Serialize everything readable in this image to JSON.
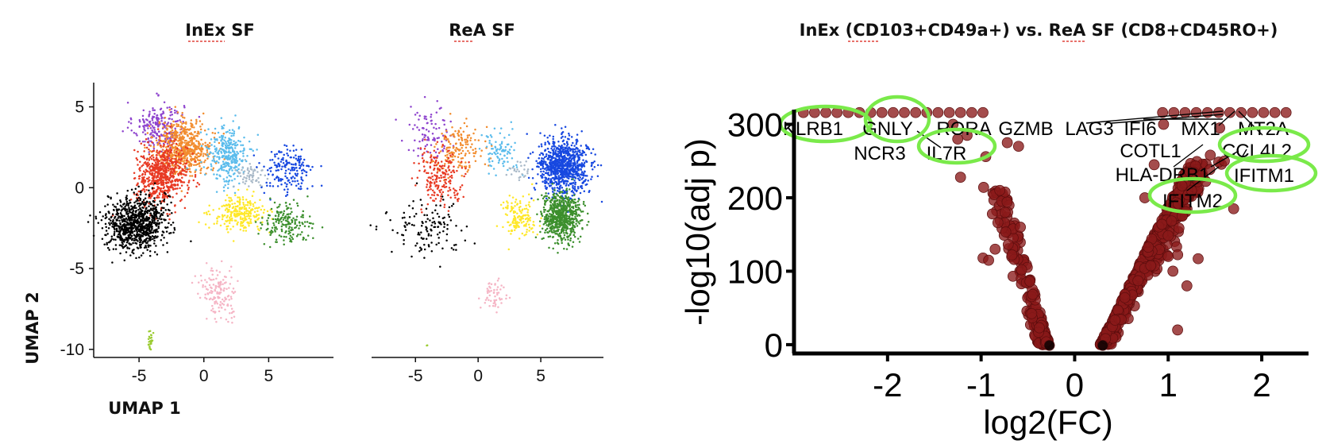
{
  "chart_data": [
    {
      "type": "scatter",
      "title": "InEx SF",
      "xlabel": "UMAP 1",
      "ylabel": "UMAP 2",
      "xlim": [
        -8.5,
        10
      ],
      "ylim": [
        -10.5,
        6.5
      ],
      "xticks": [
        -5,
        0,
        5
      ],
      "yticks": [
        5,
        0,
        -5,
        -10
      ],
      "clusters": [
        {
          "color": "#8e44ce",
          "center": [
            -3.5,
            3.8
          ],
          "spread": [
            1.3,
            1.0
          ],
          "n": 230
        },
        {
          "color": "#f28c2e",
          "center": [
            -1.5,
            2.5
          ],
          "spread": [
            1.4,
            1.1
          ],
          "n": 600
        },
        {
          "color": "#e83a24",
          "center": [
            -3.2,
            0.8
          ],
          "spread": [
            1.3,
            1.2
          ],
          "n": 650
        },
        {
          "color": "#5bbcec",
          "center": [
            1.8,
            2.0
          ],
          "spread": [
            1.0,
            1.2
          ],
          "n": 300
        },
        {
          "color": "#a9b9c8",
          "center": [
            3.5,
            0.8
          ],
          "spread": [
            0.8,
            0.6
          ],
          "n": 60
        },
        {
          "color": "#1748e0",
          "center": [
            6.5,
            1.0
          ],
          "spread": [
            1.3,
            1.0
          ],
          "n": 180
        },
        {
          "color": "#ffe82a",
          "center": [
            2.8,
            -1.6
          ],
          "spread": [
            1.4,
            0.7
          ],
          "n": 260
        },
        {
          "color": "#3c8f2d",
          "center": [
            6.3,
            -2.2
          ],
          "spread": [
            1.2,
            0.8
          ],
          "n": 180
        },
        {
          "color": "#000000",
          "center": [
            -5.2,
            -2.2
          ],
          "spread": [
            1.5,
            1.1
          ],
          "n": 900
        },
        {
          "color": "#f5b5c5",
          "center": [
            1.2,
            -6.5
          ],
          "spread": [
            1.0,
            1.0
          ],
          "n": 150
        },
        {
          "color": "#9ccc33",
          "center": [
            -4.1,
            -9.4
          ],
          "spread": [
            0.12,
            0.45
          ],
          "n": 25
        }
      ]
    },
    {
      "type": "scatter",
      "title": "ReA SF",
      "xlim": [
        -8.5,
        10
      ],
      "ylim": [
        -10.5,
        6.5
      ],
      "xticks": [
        -5,
        0,
        5
      ],
      "clusters": [
        {
          "color": "#8e44ce",
          "center": [
            -4.0,
            3.5
          ],
          "spread": [
            1.2,
            1.1
          ],
          "n": 90
        },
        {
          "color": "#f28c2e",
          "center": [
            -1.5,
            2.5
          ],
          "spread": [
            1.3,
            1.0
          ],
          "n": 160
        },
        {
          "color": "#e83a24",
          "center": [
            -3.0,
            0.7
          ],
          "spread": [
            1.3,
            1.1
          ],
          "n": 200
        },
        {
          "color": "#5bbcec",
          "center": [
            1.8,
            2.2
          ],
          "spread": [
            1.0,
            0.9
          ],
          "n": 90
        },
        {
          "color": "#a9b9c8",
          "center": [
            3.3,
            1.2
          ],
          "spread": [
            0.7,
            0.5
          ],
          "n": 25
        },
        {
          "color": "#1748e0",
          "center": [
            6.8,
            1.3
          ],
          "spread": [
            1.3,
            1.1
          ],
          "n": 900
        },
        {
          "color": "#3c8f2d",
          "center": [
            6.6,
            -1.8
          ],
          "spread": [
            1.0,
            1.0
          ],
          "n": 650
        },
        {
          "color": "#ffe82a",
          "center": [
            3.3,
            -1.9
          ],
          "spread": [
            0.9,
            0.8
          ],
          "n": 150
        },
        {
          "color": "#000000",
          "center": [
            -4.2,
            -2.6
          ],
          "spread": [
            2.0,
            1.2
          ],
          "n": 130
        },
        {
          "color": "#f5b5c5",
          "center": [
            1.2,
            -6.6
          ],
          "spread": [
            0.6,
            0.8
          ],
          "n": 55
        },
        {
          "color": "#9ccc33",
          "center": [
            -4.1,
            -9.7
          ],
          "spread": [
            0.05,
            0.05
          ],
          "n": 2
        }
      ]
    },
    {
      "type": "scatter",
      "title": "InEx (CD103+CD49a+) vs. ReA SF (CD8+CD45RO+)",
      "xlabel": "log2(FC)",
      "ylabel": "-log10(adj p)",
      "xlim": [
        -3.0,
        2.5
      ],
      "ylim": [
        -12,
        320
      ],
      "xticks": [
        -2,
        -1,
        0,
        1,
        2
      ],
      "yticks": [
        0,
        100,
        200,
        300
      ],
      "point_color": "#8b1a1a",
      "baseline_color": "#000000",
      "genes": [
        {
          "label": "KLRB1",
          "circled": true
        },
        {
          "label": "GNLY",
          "circled": true
        },
        {
          "label": "RORA",
          "circled": false
        },
        {
          "label": "GZMB",
          "circled": false
        },
        {
          "label": "LAG3",
          "circled": false
        },
        {
          "label": "IFI6",
          "circled": false
        },
        {
          "label": "MX1",
          "circled": false
        },
        {
          "label": "MT2A",
          "circled": false
        },
        {
          "label": "NCR3",
          "circled": false
        },
        {
          "label": "IL7R",
          "circled": true
        },
        {
          "label": "COTL1",
          "circled": false
        },
        {
          "label": "CCL4L2",
          "circled": true
        },
        {
          "label": "HLA-DRB1",
          "circled": false
        },
        {
          "label": "IFITM1",
          "circled": true
        },
        {
          "label": "IFITM2",
          "circled": true
        }
      ],
      "highlight_color": "#7aea4a"
    }
  ]
}
